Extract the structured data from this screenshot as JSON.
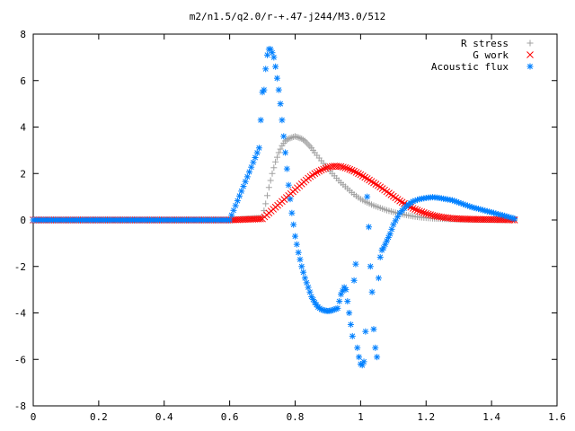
{
  "chart_data": {
    "type": "scatter",
    "title": "m2/n1.5/q2.0/r-+.47-j244/M3.0/512",
    "xlabel": "",
    "ylabel": "",
    "xlim": [
      0,
      1.6
    ],
    "ylim": [
      -8,
      8
    ],
    "x_ticks": [
      "0",
      "0.2",
      "0.4",
      "0.6",
      "0.8",
      "1",
      "1.2",
      "1.4",
      "1.6"
    ],
    "y_ticks": [
      "8",
      "6",
      "4",
      "2",
      "0",
      "-2",
      "-4",
      "-6",
      "-8"
    ],
    "grid": false,
    "legend_position": "top-right",
    "series": [
      {
        "name": "R stress",
        "marker": "+",
        "color": "#a0a0a0",
        "x": [
          0.0,
          0.1,
          0.2,
          0.3,
          0.4,
          0.5,
          0.6,
          0.7,
          0.71,
          0.72,
          0.73,
          0.74,
          0.75,
          0.76,
          0.77,
          0.78,
          0.79,
          0.8,
          0.81,
          0.82,
          0.83,
          0.84,
          0.85,
          0.86,
          0.88,
          0.9,
          0.92,
          0.94,
          0.96,
          0.98,
          1.0,
          1.02,
          1.04,
          1.06,
          1.08,
          1.1,
          1.12,
          1.14,
          1.16,
          1.18,
          1.2,
          1.22,
          1.25,
          1.3,
          1.35,
          1.4,
          1.45,
          1.47
        ],
        "y": [
          0.0,
          0.0,
          0.0,
          0.0,
          0.0,
          0.0,
          0.0,
          0.1,
          0.7,
          1.4,
          2.0,
          2.5,
          2.9,
          3.2,
          3.4,
          3.5,
          3.55,
          3.6,
          3.55,
          3.5,
          3.4,
          3.25,
          3.1,
          2.9,
          2.55,
          2.2,
          1.9,
          1.6,
          1.35,
          1.1,
          0.9,
          0.75,
          0.62,
          0.52,
          0.42,
          0.34,
          0.27,
          0.21,
          0.16,
          0.12,
          0.09,
          0.07,
          0.05,
          0.03,
          0.02,
          0.01,
          0.0,
          0.0
        ]
      },
      {
        "name": "G work",
        "marker": "x",
        "color": "#ff0000",
        "x": [
          0.0,
          0.1,
          0.2,
          0.3,
          0.4,
          0.5,
          0.6,
          0.7,
          0.72,
          0.74,
          0.76,
          0.78,
          0.8,
          0.82,
          0.84,
          0.86,
          0.88,
          0.9,
          0.92,
          0.94,
          0.96,
          0.98,
          1.0,
          1.02,
          1.04,
          1.06,
          1.08,
          1.1,
          1.12,
          1.14,
          1.16,
          1.18,
          1.2,
          1.22,
          1.24,
          1.26,
          1.28,
          1.3,
          1.35,
          1.4,
          1.45,
          1.47
        ],
        "y": [
          0.0,
          0.0,
          0.0,
          0.0,
          0.0,
          0.0,
          0.0,
          0.05,
          0.3,
          0.55,
          0.8,
          1.05,
          1.3,
          1.55,
          1.8,
          2.0,
          2.15,
          2.27,
          2.32,
          2.3,
          2.22,
          2.1,
          1.95,
          1.78,
          1.6,
          1.42,
          1.22,
          1.02,
          0.82,
          0.65,
          0.5,
          0.38,
          0.28,
          0.2,
          0.14,
          0.1,
          0.07,
          0.05,
          0.03,
          0.02,
          0.01,
          0.0
        ]
      },
      {
        "name": "Acoustic flux",
        "marker": "*",
        "color": "#0080ff",
        "x": [
          0.0,
          0.1,
          0.2,
          0.3,
          0.4,
          0.5,
          0.6,
          0.69,
          0.7,
          0.705,
          0.71,
          0.715,
          0.72,
          0.725,
          0.73,
          0.735,
          0.74,
          0.745,
          0.75,
          0.755,
          0.76,
          0.765,
          0.77,
          0.775,
          0.78,
          0.785,
          0.79,
          0.795,
          0.8,
          0.81,
          0.82,
          0.83,
          0.84,
          0.85,
          0.86,
          0.87,
          0.88,
          0.89,
          0.9,
          0.91,
          0.92,
          0.93,
          0.94,
          0.95,
          0.955,
          0.96,
          0.965,
          0.97,
          0.975,
          0.98,
          0.985,
          0.99,
          0.995,
          1.0,
          1.005,
          1.01,
          1.015,
          1.02,
          1.025,
          1.03,
          1.035,
          1.04,
          1.045,
          1.05,
          1.055,
          1.06,
          1.065,
          1.07,
          1.08,
          1.09,
          1.1,
          1.12,
          1.14,
          1.16,
          1.18,
          1.2,
          1.22,
          1.24,
          1.26,
          1.28,
          1.3,
          1.32,
          1.34,
          1.36,
          1.38,
          1.4,
          1.42,
          1.44,
          1.46,
          1.47
        ],
        "y": [
          0.0,
          0.0,
          0.0,
          0.0,
          0.0,
          0.0,
          0.0,
          3.1,
          5.5,
          5.6,
          6.5,
          7.1,
          7.35,
          7.35,
          7.2,
          7.0,
          6.6,
          6.1,
          5.6,
          5.0,
          4.3,
          3.6,
          2.9,
          2.2,
          1.5,
          0.9,
          0.3,
          -0.2,
          -0.7,
          -1.4,
          -2.0,
          -2.5,
          -2.9,
          -3.3,
          -3.55,
          -3.75,
          -3.85,
          -3.9,
          -3.92,
          -3.9,
          -3.85,
          -3.8,
          -3.2,
          -2.9,
          -3.0,
          -3.5,
          -4.0,
          -4.5,
          -5.0,
          -2.6,
          -1.9,
          -5.5,
          -5.9,
          -6.2,
          -6.25,
          -6.1,
          -4.8,
          1.0,
          -0.3,
          -2.0,
          -3.1,
          -4.7,
          -5.5,
          -5.9,
          -2.5,
          -1.6,
          -1.3,
          -1.2,
          -0.9,
          -0.6,
          -0.2,
          0.3,
          0.6,
          0.8,
          0.9,
          0.95,
          0.98,
          0.95,
          0.9,
          0.85,
          0.75,
          0.65,
          0.55,
          0.48,
          0.4,
          0.33,
          0.25,
          0.18,
          0.1,
          0.05
        ]
      }
    ]
  }
}
